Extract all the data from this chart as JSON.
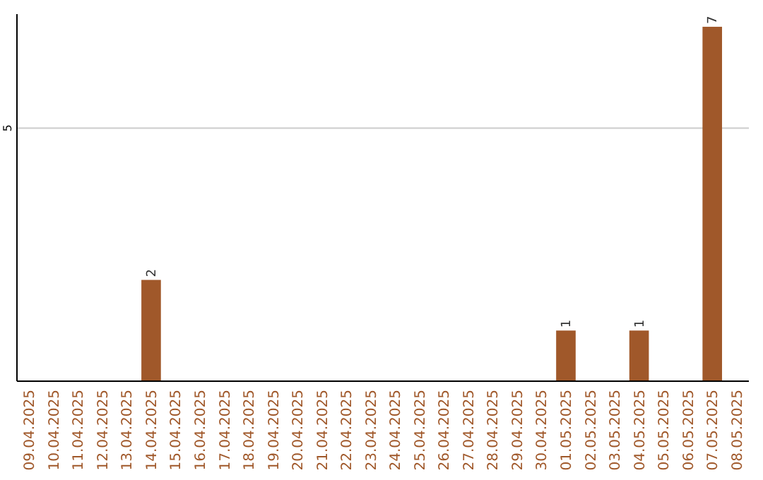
{
  "chart_data": {
    "type": "bar",
    "categories": [
      "09.04.2025",
      "10.04.2025",
      "11.04.2025",
      "12.04.2025",
      "13.04.2025",
      "14.04.2025",
      "15.04.2025",
      "16.04.2025",
      "17.04.2025",
      "18.04.2025",
      "19.04.2025",
      "20.04.2025",
      "21.04.2025",
      "22.04.2025",
      "23.04.2025",
      "24.04.2025",
      "25.04.2025",
      "26.04.2025",
      "27.04.2025",
      "28.04.2025",
      "29.04.2025",
      "30.04.2025",
      "01.05.2025",
      "02.05.2025",
      "03.05.2025",
      "04.05.2025",
      "05.05.2025",
      "06.05.2025",
      "07.05.2025",
      "08.05.2025"
    ],
    "values": [
      0,
      0,
      0,
      0,
      0,
      2,
      0,
      0,
      0,
      0,
      0,
      0,
      0,
      0,
      0,
      0,
      0,
      0,
      0,
      0,
      0,
      0,
      1,
      0,
      0,
      1,
      0,
      0,
      7,
      0
    ],
    "color": "#a0582a",
    "value_labels": [
      null,
      null,
      null,
      null,
      null,
      "2",
      null,
      null,
      null,
      null,
      null,
      null,
      null,
      null,
      null,
      null,
      null,
      null,
      null,
      null,
      null,
      null,
      "1",
      null,
      null,
      "1",
      null,
      null,
      "7",
      null
    ],
    "ylim": [
      0,
      7.25
    ],
    "yticks": [
      5
    ],
    "grid": "y"
  }
}
